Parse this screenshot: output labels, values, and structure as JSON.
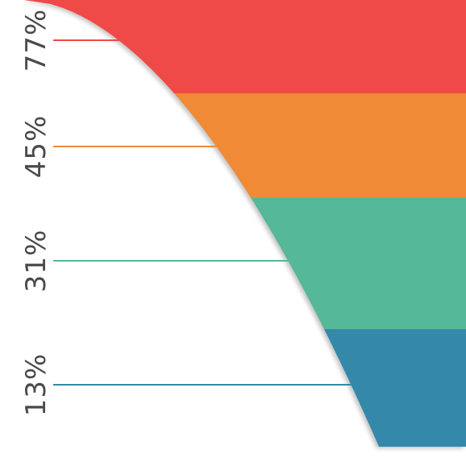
{
  "chart_data": {
    "type": "area",
    "title": "",
    "xlabel": "",
    "ylabel": "",
    "categories": [
      "77%",
      "45%",
      "31%",
      "13%"
    ],
    "values": [
      77,
      45,
      31,
      13
    ],
    "colors": [
      "#ef4a48",
      "#f08a36",
      "#55b898",
      "#3489aa"
    ],
    "grid": false,
    "legend": "none"
  }
}
